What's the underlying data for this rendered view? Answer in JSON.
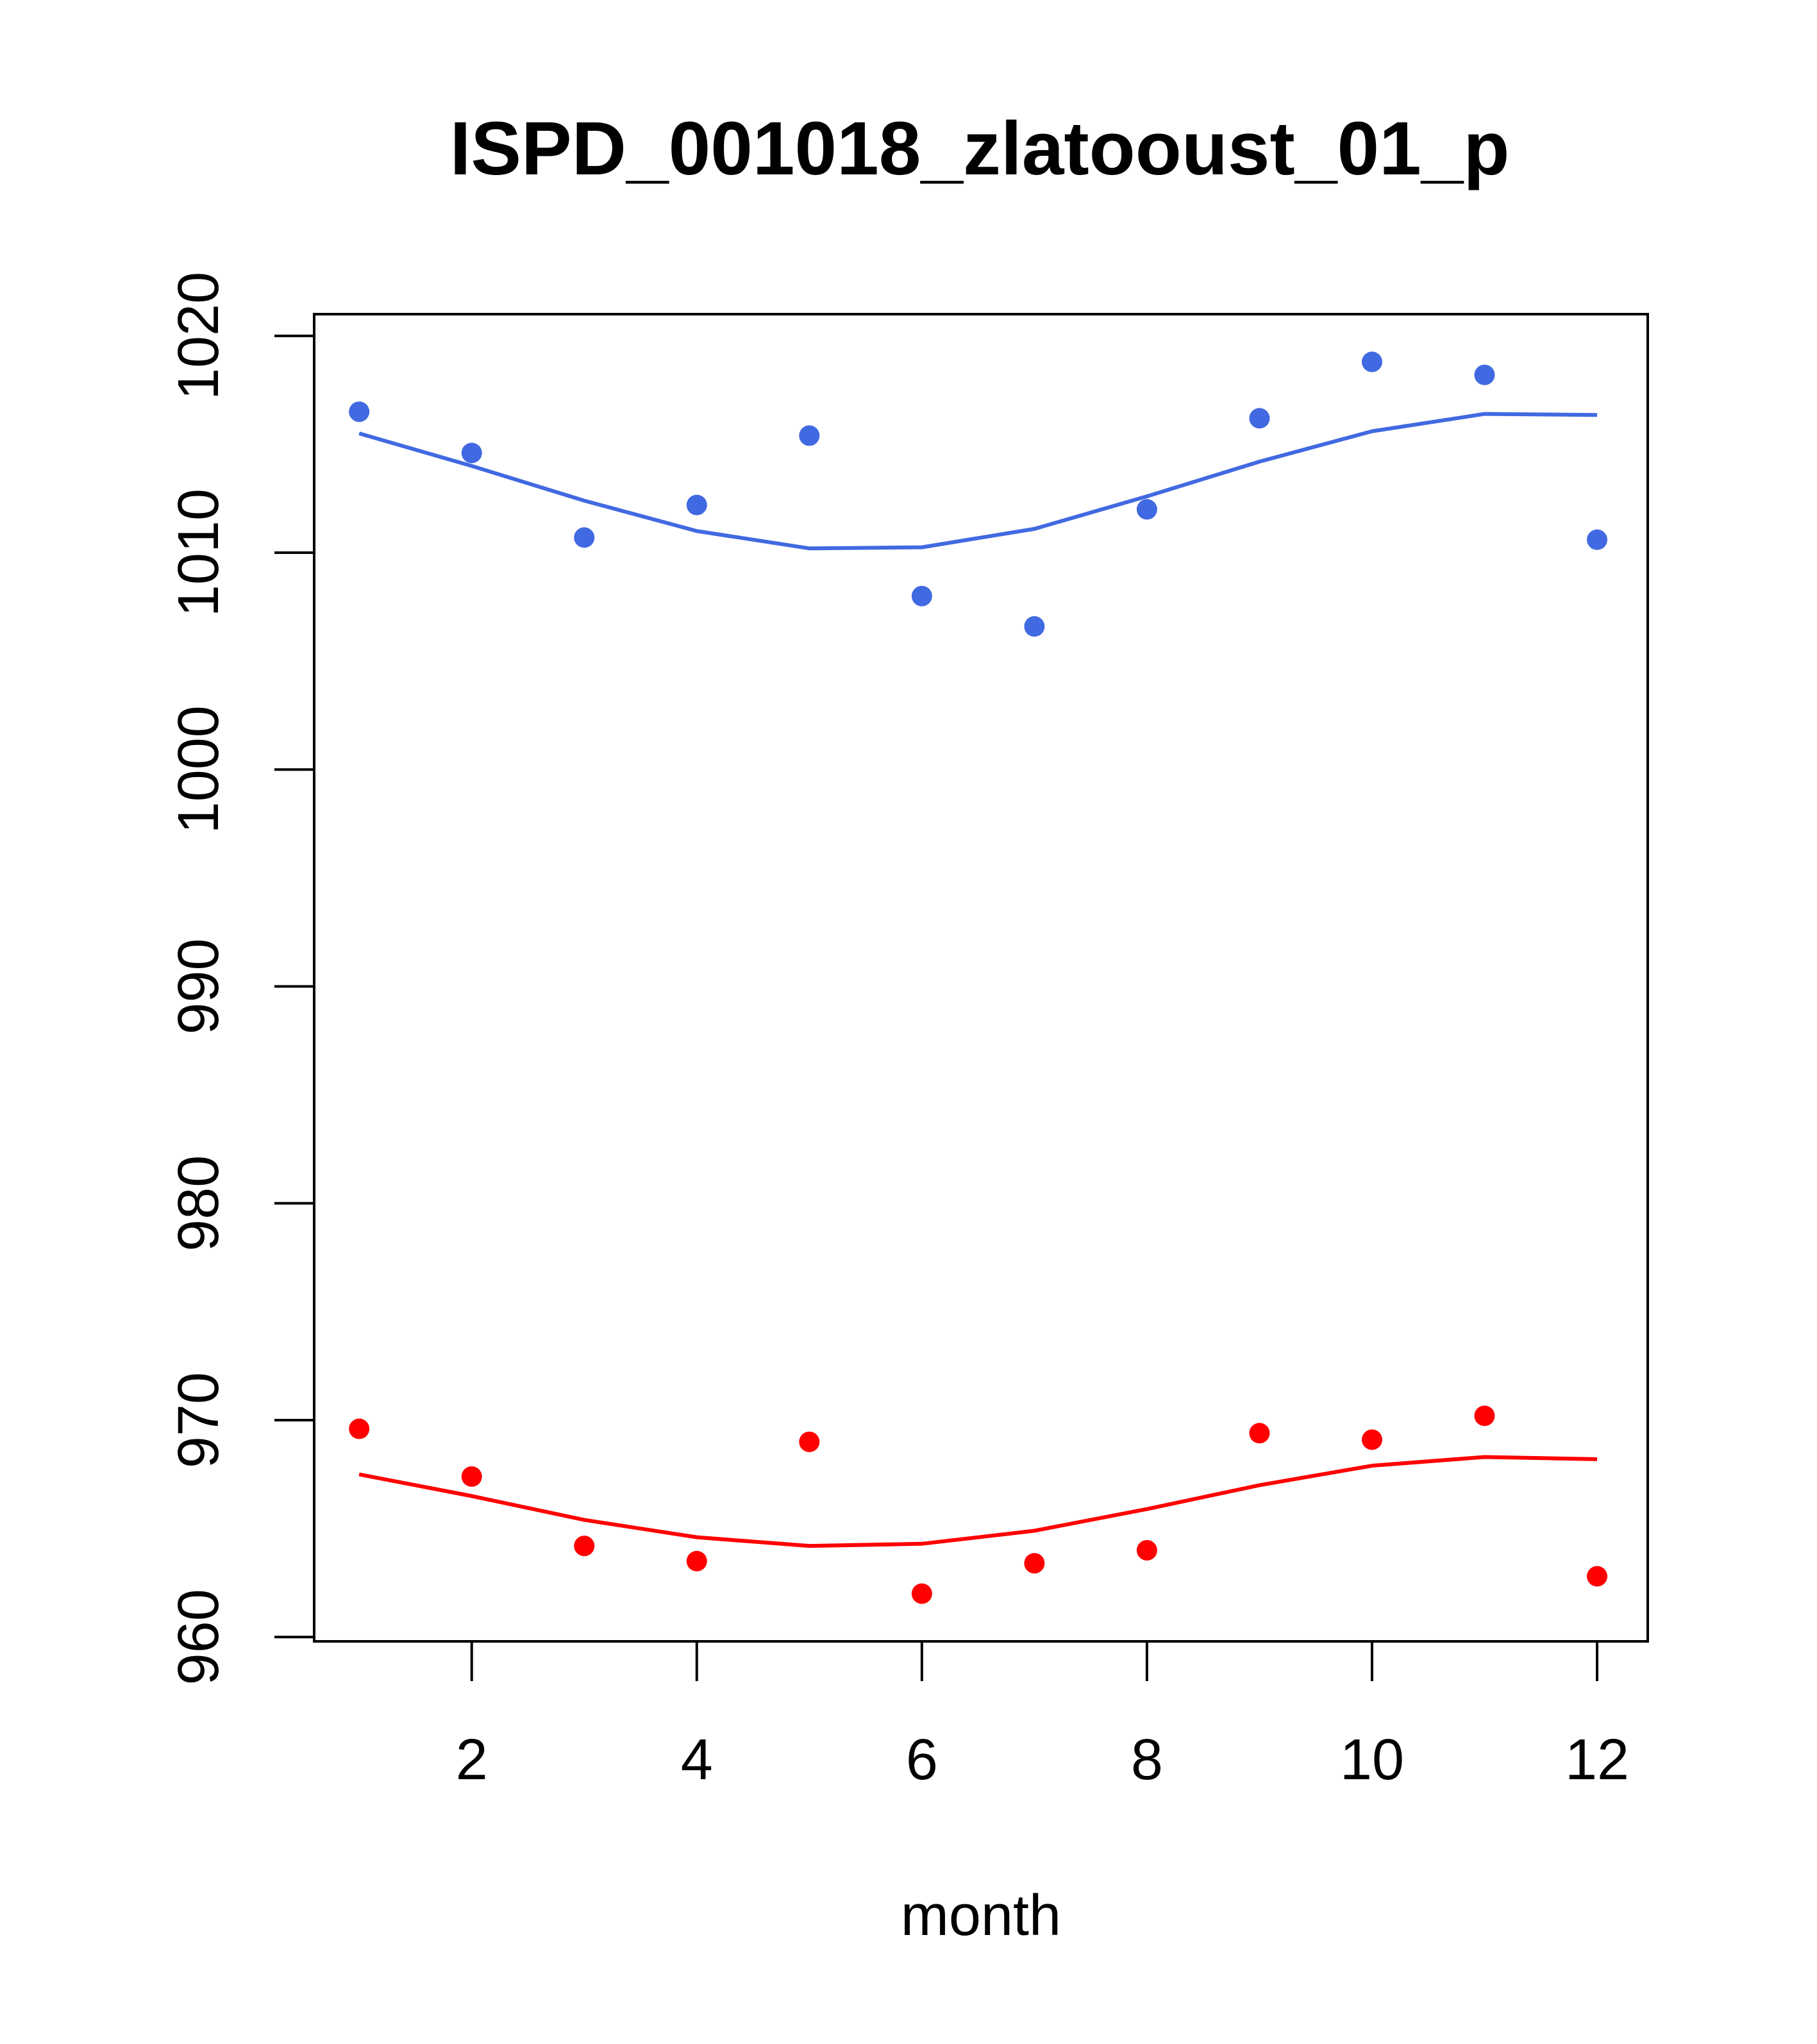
{
  "chart_data": {
    "type": "scatter",
    "title": "ISPD_001018_zlatooust_01_p",
    "xlabel": "month",
    "ylabel": "",
    "xlim": [
      0.6,
      12.45
    ],
    "ylim": [
      959.8,
      1021.0
    ],
    "x_ticks": [
      2,
      4,
      6,
      8,
      10,
      12
    ],
    "x_tick_labels": [
      "2",
      "4",
      "6",
      "8",
      "10",
      "12"
    ],
    "y_ticks": [
      960,
      970,
      980,
      990,
      1000,
      1010,
      1020
    ],
    "y_tick_labels": [
      "960",
      "970",
      "980",
      "990",
      "1000",
      "1010",
      "1020"
    ],
    "grid": false,
    "series": [
      {
        "color": "#4169E1",
        "x": [
          1,
          2,
          3,
          4,
          5,
          6,
          7,
          8,
          9,
          10,
          11,
          12
        ],
        "points": [
          1016.5,
          1014.6,
          1010.7,
          1012.2,
          1015.4,
          1008.0,
          1006.6,
          1012.0,
          1016.2,
          1018.8,
          1018.2,
          1010.6
        ],
        "fit": [
          1015.5,
          1014.0,
          1012.4,
          1011.0,
          1010.2,
          1010.25,
          1011.1,
          1012.6,
          1014.2,
          1015.6,
          1016.4,
          1016.35
        ]
      },
      {
        "color": "#FF0000",
        "x": [
          1,
          2,
          3,
          4,
          5,
          6,
          7,
          8,
          9,
          10,
          11,
          12
        ],
        "points": [
          969.6,
          967.4,
          964.2,
          963.5,
          969.0,
          962.0,
          963.4,
          964.0,
          969.4,
          969.1,
          970.2,
          962.8
        ],
        "fit": [
          967.5,
          966.5,
          965.4,
          964.6,
          964.2,
          964.3,
          964.9,
          965.9,
          967.0,
          967.9,
          968.3,
          968.2
        ]
      }
    ]
  }
}
